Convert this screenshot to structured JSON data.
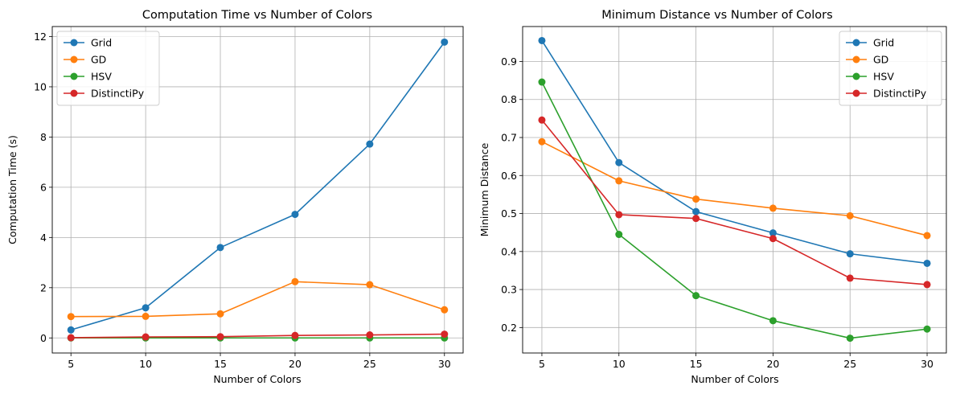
{
  "chart_data": [
    {
      "type": "line",
      "title": "Computation Time vs Number of Colors",
      "xlabel": "Number of Colors",
      "ylabel": "Computation Time (s)",
      "x": [
        5,
        10,
        15,
        20,
        25,
        30
      ],
      "xlim": [
        3.75,
        31.25
      ],
      "ylim": [
        -0.6,
        12.4
      ],
      "xticks": [
        5,
        10,
        15,
        20,
        25,
        30
      ],
      "xtick_labels": [
        "5",
        "10",
        "15",
        "20",
        "25",
        "30"
      ],
      "yticks": [
        0,
        2,
        4,
        6,
        8,
        10,
        12
      ],
      "ytick_labels": [
        "0",
        "2",
        "4",
        "6",
        "8",
        "10",
        "12"
      ],
      "grid": true,
      "legend_position": "upper left",
      "series": [
        {
          "name": "Grid",
          "color": "#1f77b4",
          "values": [
            0.32,
            1.2,
            3.6,
            4.92,
            7.72,
            11.78
          ]
        },
        {
          "name": "GD",
          "color": "#ff7f0e",
          "values": [
            0.85,
            0.86,
            0.96,
            2.24,
            2.12,
            1.12
          ]
        },
        {
          "name": "HSV",
          "color": "#2ca02c",
          "values": [
            0.0,
            0.0,
            0.0,
            0.0,
            0.0,
            0.0
          ]
        },
        {
          "name": "DistinctiPy",
          "color": "#d62728",
          "values": [
            0.01,
            0.04,
            0.05,
            0.1,
            0.12,
            0.15
          ]
        }
      ]
    },
    {
      "type": "line",
      "title": "Minimum Distance vs Number of Colors",
      "xlabel": "Number of Colors",
      "ylabel": "Minimum Distance",
      "x": [
        5,
        10,
        15,
        20,
        25,
        30
      ],
      "xlim": [
        3.75,
        31.25
      ],
      "ylim": [
        0.133,
        0.992
      ],
      "xticks": [
        5,
        10,
        15,
        20,
        25,
        30
      ],
      "xtick_labels": [
        "5",
        "10",
        "15",
        "20",
        "25",
        "30"
      ],
      "yticks": [
        0.2,
        0.3,
        0.4,
        0.5,
        0.6,
        0.7,
        0.8,
        0.9
      ],
      "ytick_labels": [
        "0.2",
        "0.3",
        "0.4",
        "0.5",
        "0.6",
        "0.7",
        "0.8",
        "0.9"
      ],
      "grid": true,
      "legend_position": "upper right",
      "series": [
        {
          "name": "Grid",
          "color": "#1f77b4",
          "values": [
            0.955,
            0.634,
            0.505,
            0.449,
            0.394,
            0.369
          ]
        },
        {
          "name": "GD",
          "color": "#ff7f0e",
          "values": [
            0.689,
            0.586,
            0.538,
            0.514,
            0.494,
            0.442
          ]
        },
        {
          "name": "HSV",
          "color": "#2ca02c",
          "values": [
            0.846,
            0.445,
            0.284,
            0.218,
            0.172,
            0.196
          ]
        },
        {
          "name": "DistinctiPy",
          "color": "#d62728",
          "values": [
            0.746,
            0.497,
            0.487,
            0.434,
            0.33,
            0.313
          ]
        }
      ]
    }
  ]
}
